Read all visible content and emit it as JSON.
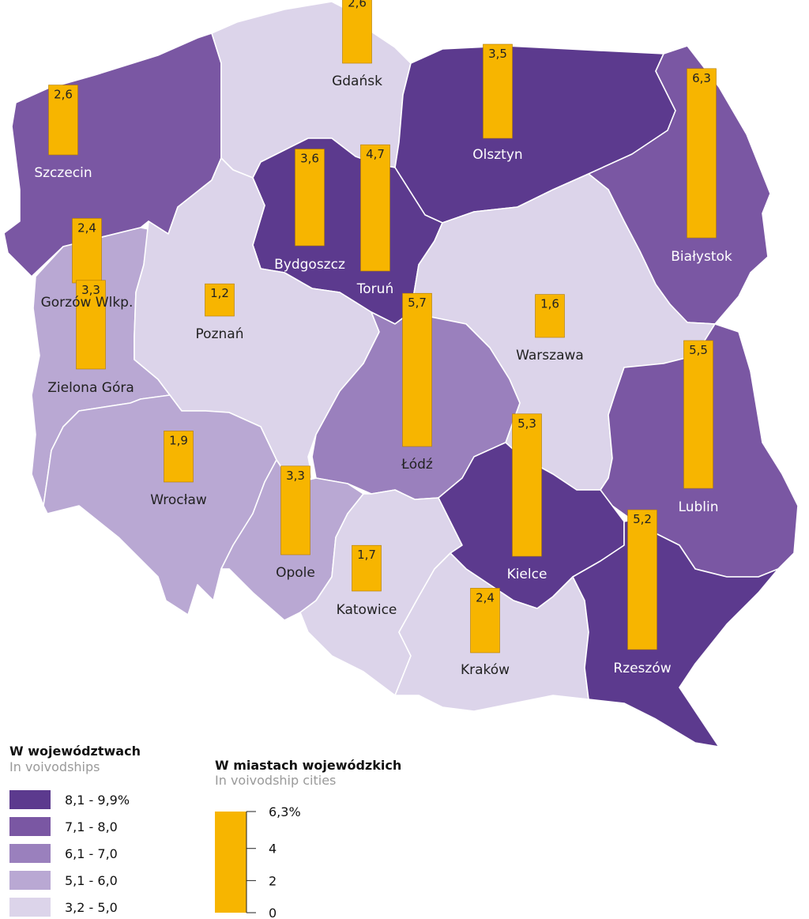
{
  "colors": {
    "class_1": "#5c3a8e",
    "class_2": "#7a57a3",
    "class_3": "#9a80bd",
    "class_4": "#b9a8d3",
    "class_5": "#dcd4ea",
    "bar": "#f7b500"
  },
  "voivodships": [
    {
      "id": "zachodniopomorskie",
      "class": 2,
      "city": "Szczecin",
      "city_value": "2,6",
      "city_value_num": 2.6
    },
    {
      "id": "pomorskie",
      "class": 5,
      "city": "Gdańsk",
      "city_value": "2,6",
      "city_value_num": 2.6
    },
    {
      "id": "warminsko-mazurskie",
      "class": 1,
      "city": "Olsztyn",
      "city_value": "3,5",
      "city_value_num": 3.5
    },
    {
      "id": "podlaskie",
      "class": 2,
      "city": "Białystok",
      "city_value": "6,3",
      "city_value_num": 6.3
    },
    {
      "id": "kujawsko-pomorskie",
      "class": 1,
      "city": "Bydgoszcz",
      "city_value": "3,6",
      "city_value_num": 3.6,
      "city2": "Toruń",
      "city2_value": "4,7",
      "city2_value_num": 4.7
    },
    {
      "id": "lubuskie",
      "class": 4,
      "city": "Gorzów Wlkp.",
      "city_value": "2,4",
      "city_value_num": 2.4,
      "city2": "Zielona Góra",
      "city2_value": "3,3",
      "city2_value_num": 3.3
    },
    {
      "id": "wielkopolskie",
      "class": 5,
      "city": "Poznań",
      "city_value": "1,2",
      "city_value_num": 1.2
    },
    {
      "id": "mazowieckie",
      "class": 5,
      "city": "Warszawa",
      "city_value": "1,6",
      "city_value_num": 1.6
    },
    {
      "id": "lodzkie",
      "class": 3,
      "city": "Łódź",
      "city_value": "5,7",
      "city_value_num": 5.7
    },
    {
      "id": "lubelskie",
      "class": 2,
      "city": "Lublin",
      "city_value": "5,5",
      "city_value_num": 5.5
    },
    {
      "id": "dolnoslaskie",
      "class": 4,
      "city": "Wrocław",
      "city_value": "1,9",
      "city_value_num": 1.9
    },
    {
      "id": "opolskie",
      "class": 4,
      "city": "Opole",
      "city_value": "3,3",
      "city_value_num": 3.3
    },
    {
      "id": "slaskie",
      "class": 5,
      "city": "Katowice",
      "city_value": "1,7",
      "city_value_num": 1.7
    },
    {
      "id": "swietokrzyskie",
      "class": 1,
      "city": "Kielce",
      "city_value": "5,3",
      "city_value_num": 5.3
    },
    {
      "id": "malopolskie",
      "class": 5,
      "city": "Kraków",
      "city_value": "2,4",
      "city_value_num": 2.4
    },
    {
      "id": "podkarpackie",
      "class": 1,
      "city": "Rzeszów",
      "city_value": "5,2",
      "city_value_num": 5.2
    }
  ],
  "legend_regions": {
    "title": "W województwach",
    "subtitle": "In voivodships",
    "items": [
      {
        "label": "8,1 -  9,9%",
        "class": 1
      },
      {
        "label": "7,1 -  8,0",
        "class": 2
      },
      {
        "label": "6,1 -  7,0",
        "class": 3
      },
      {
        "label": "5,1 -  6,0",
        "class": 4
      },
      {
        "label": "3,2 -  5,0",
        "class": 5
      }
    ]
  },
  "legend_cities": {
    "title": "W miastach wojewódzkich",
    "subtitle": "In voivodship cities",
    "ticks": [
      {
        "label": "6,3%",
        "value": 6.3
      },
      {
        "label": "4",
        "value": 4
      },
      {
        "label": "2",
        "value": 2
      },
      {
        "label": "0",
        "value": 0
      }
    ]
  }
}
